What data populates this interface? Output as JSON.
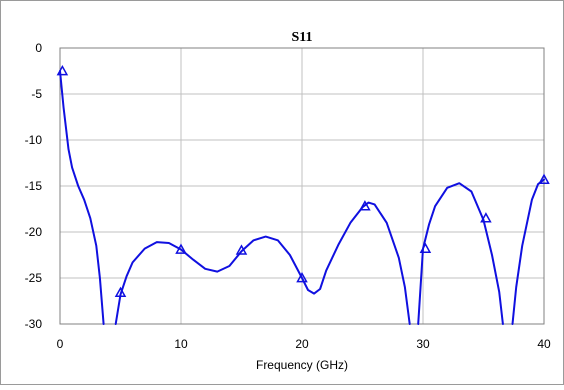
{
  "chart_data": {
    "type": "line",
    "title": "S11",
    "xlabel": "Frequency (GHz)",
    "ylabel": "",
    "xlim": [
      0,
      40
    ],
    "ylim": [
      -30,
      0
    ],
    "x_ticks": [
      "0",
      "10",
      "20",
      "30",
      "40"
    ],
    "y_ticks": [
      "0",
      "-5",
      "-10",
      "-15",
      "-20",
      "-25",
      "-30"
    ],
    "grid": true,
    "series": [
      {
        "color": "#1010e0",
        "marker": "triangle",
        "points": [
          [
            0,
            -2.5
          ],
          [
            0.3,
            -6.5
          ],
          [
            0.7,
            -11
          ],
          [
            1.0,
            -13
          ],
          [
            1.5,
            -15
          ],
          [
            2.0,
            -16.5
          ],
          [
            2.5,
            -18.5
          ],
          [
            3.0,
            -21.5
          ],
          [
            3.3,
            -25
          ],
          [
            3.6,
            -30
          ]
        ],
        "segments": [
          [
            [
              0,
              -2.5
            ],
            [
              0.3,
              -6.5
            ],
            [
              0.7,
              -11
            ],
            [
              1.0,
              -13
            ],
            [
              1.5,
              -15
            ],
            [
              2.0,
              -16.5
            ],
            [
              2.5,
              -18.5
            ],
            [
              3.0,
              -21.5
            ],
            [
              3.3,
              -25
            ],
            [
              3.6,
              -30
            ]
          ],
          [
            [
              4.6,
              -30
            ],
            [
              5.0,
              -26.8
            ],
            [
              5.5,
              -24.8
            ],
            [
              6.0,
              -23.3
            ],
            [
              7.0,
              -21.8
            ],
            [
              8.0,
              -21.1
            ],
            [
              9.0,
              -21.2
            ],
            [
              10.0,
              -21.9
            ],
            [
              11.0,
              -23.0
            ],
            [
              12.0,
              -24.0
            ],
            [
              13.0,
              -24.3
            ],
            [
              14.0,
              -23.7
            ],
            [
              15.0,
              -22.1
            ],
            [
              16.0,
              -20.9
            ],
            [
              17.0,
              -20.5
            ],
            [
              18.0,
              -20.9
            ],
            [
              19.0,
              -22.5
            ],
            [
              20.0,
              -25.0
            ],
            [
              20.5,
              -26.3
            ],
            [
              21.0,
              -26.7
            ],
            [
              21.5,
              -26.2
            ],
            [
              22.0,
              -24.2
            ],
            [
              23.0,
              -21.4
            ],
            [
              24.0,
              -19.0
            ],
            [
              25.0,
              -17.3
            ],
            [
              25.5,
              -16.8
            ],
            [
              26.0,
              -17.0
            ],
            [
              27.0,
              -19.0
            ],
            [
              28.0,
              -22.8
            ],
            [
              28.5,
              -26.0
            ],
            [
              28.9,
              -30
            ]
          ],
          [
            [
              29.6,
              -30
            ],
            [
              30.0,
              -21.8
            ],
            [
              30.5,
              -19.2
            ],
            [
              31.0,
              -17.2
            ],
            [
              32.0,
              -15.2
            ],
            [
              33.0,
              -14.7
            ],
            [
              34.0,
              -15.6
            ],
            [
              35.0,
              -18.7
            ],
            [
              35.7,
              -22.5
            ],
            [
              36.3,
              -26.5
            ],
            [
              36.6,
              -30
            ]
          ],
          [
            [
              37.4,
              -30
            ],
            [
              37.7,
              -26.0
            ],
            [
              38.2,
              -21.5
            ],
            [
              39.0,
              -16.5
            ],
            [
              39.5,
              -14.8
            ],
            [
              40.0,
              -14.3
            ]
          ]
        ],
        "markers": [
          [
            0.2,
            -2.5
          ],
          [
            5.0,
            -26.6
          ],
          [
            10.0,
            -21.9
          ],
          [
            15.0,
            -22.0
          ],
          [
            20.0,
            -25.0
          ],
          [
            25.2,
            -17.2
          ],
          [
            30.2,
            -21.8
          ],
          [
            35.2,
            -18.5
          ],
          [
            40.0,
            -14.3
          ]
        ]
      }
    ]
  }
}
